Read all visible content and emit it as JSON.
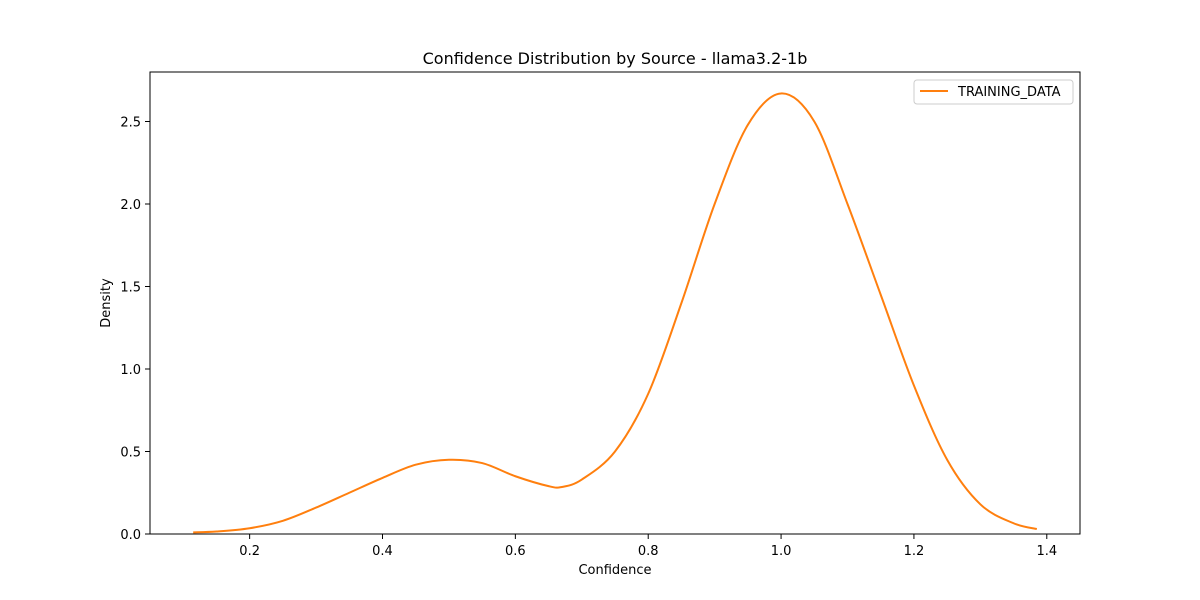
{
  "chart_data": {
    "type": "line",
    "title": "Confidence Distribution by Source - llama3.2-1b",
    "xlabel": "Confidence",
    "ylabel": "Density",
    "xlim": [
      0.05,
      1.45
    ],
    "ylim": [
      0,
      2.8
    ],
    "xticks": [
      0.2,
      0.4,
      0.6,
      0.8,
      1.0,
      1.2,
      1.4
    ],
    "xtick_labels": [
      "0.2",
      "0.4",
      "0.6",
      "0.8",
      "1.0",
      "1.2",
      "1.4"
    ],
    "yticks": [
      0.0,
      0.5,
      1.0,
      1.5,
      2.0,
      2.5
    ],
    "ytick_labels": [
      "0.0",
      "0.5",
      "1.0",
      "1.5",
      "2.0",
      "2.5"
    ],
    "grid": false,
    "legend_position": "top-right",
    "series": [
      {
        "name": "TRAINING_DATA",
        "color": "#ff7f0e",
        "x": [
          0.115,
          0.15,
          0.2,
          0.25,
          0.3,
          0.35,
          0.4,
          0.45,
          0.5,
          0.55,
          0.6,
          0.65,
          0.67,
          0.7,
          0.75,
          0.8,
          0.85,
          0.9,
          0.95,
          1.0,
          1.05,
          1.1,
          1.15,
          1.2,
          1.25,
          1.3,
          1.35,
          1.385
        ],
        "y": [
          0.01,
          0.015,
          0.035,
          0.08,
          0.16,
          0.25,
          0.34,
          0.42,
          0.45,
          0.43,
          0.35,
          0.29,
          0.285,
          0.33,
          0.5,
          0.85,
          1.4,
          2.0,
          2.48,
          2.67,
          2.5,
          2.0,
          1.45,
          0.9,
          0.45,
          0.18,
          0.065,
          0.03
        ]
      }
    ]
  }
}
